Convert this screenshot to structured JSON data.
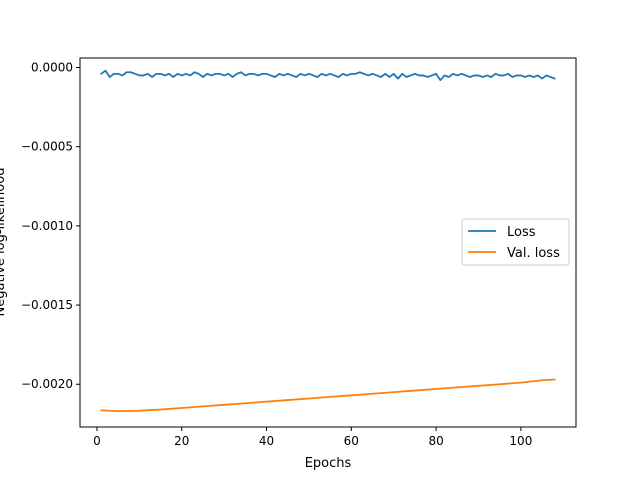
{
  "chart_data": {
    "type": "line",
    "title": "",
    "xlabel": "Epochs",
    "ylabel": "Negative log-likelihood",
    "xlim": [
      -4,
      113
    ],
    "ylim": [
      -0.00227,
      6e-05
    ],
    "xticks": [
      0,
      20,
      40,
      60,
      80,
      100
    ],
    "xtick_labels": [
      "0",
      "20",
      "40",
      "60",
      "80",
      "100"
    ],
    "yticks": [
      0.0,
      -0.0005,
      -0.001,
      -0.0015,
      -0.002
    ],
    "ytick_labels": [
      "0.0000",
      "−0.0005",
      "−0.0010",
      "−0.0015",
      "−0.0020"
    ],
    "grid": false,
    "legend_position": "center-right",
    "series": [
      {
        "name": "Loss",
        "color": "#1f77b4",
        "x": [
          1,
          2,
          3,
          4,
          5,
          6,
          7,
          8,
          9,
          10,
          11,
          12,
          13,
          14,
          15,
          16,
          17,
          18,
          19,
          20,
          21,
          22,
          23,
          24,
          25,
          26,
          27,
          28,
          29,
          30,
          31,
          32,
          33,
          34,
          35,
          36,
          37,
          38,
          39,
          40,
          41,
          42,
          43,
          44,
          45,
          46,
          47,
          48,
          49,
          50,
          51,
          52,
          53,
          54,
          55,
          56,
          57,
          58,
          59,
          60,
          61,
          62,
          63,
          64,
          65,
          66,
          67,
          68,
          69,
          70,
          71,
          72,
          73,
          74,
          75,
          76,
          77,
          78,
          79,
          80,
          81,
          82,
          83,
          84,
          85,
          86,
          87,
          88,
          89,
          90,
          91,
          92,
          93,
          94,
          95,
          96,
          97,
          98,
          99,
          100,
          101,
          102,
          103,
          104,
          105,
          106,
          107,
          108
        ],
        "y": [
          -4e-05,
          -2e-05,
          -6e-05,
          -4e-05,
          -4e-05,
          -5e-05,
          -3e-05,
          -3e-05,
          -4e-05,
          -5e-05,
          -5e-05,
          -4e-05,
          -6e-05,
          -4e-05,
          -4e-05,
          -5e-05,
          -4e-05,
          -6e-05,
          -4e-05,
          -5e-05,
          -4e-05,
          -5e-05,
          -3e-05,
          -4e-05,
          -6e-05,
          -4e-05,
          -5e-05,
          -4e-05,
          -4e-05,
          -5e-05,
          -4e-05,
          -6e-05,
          -4e-05,
          -3e-05,
          -5e-05,
          -4e-05,
          -4e-05,
          -5e-05,
          -4e-05,
          -4e-05,
          -5e-05,
          -6e-05,
          -4e-05,
          -5e-05,
          -4e-05,
          -5e-05,
          -6e-05,
          -4e-05,
          -5e-05,
          -4e-05,
          -5e-05,
          -6e-05,
          -4e-05,
          -5e-05,
          -4e-05,
          -5e-05,
          -6e-05,
          -4e-05,
          -5e-05,
          -4e-05,
          -4e-05,
          -3e-05,
          -4e-05,
          -5e-05,
          -4e-05,
          -5e-05,
          -6e-05,
          -4e-05,
          -6e-05,
          -4e-05,
          -7e-05,
          -4e-05,
          -6e-05,
          -5e-05,
          -4e-05,
          -5e-05,
          -5e-05,
          -6e-05,
          -5e-05,
          -4e-05,
          -8e-05,
          -5e-05,
          -6e-05,
          -4e-05,
          -5e-05,
          -4e-05,
          -5e-05,
          -6e-05,
          -5e-05,
          -5e-05,
          -6e-05,
          -5e-05,
          -6e-05,
          -4e-05,
          -5e-05,
          -5e-05,
          -4e-05,
          -6e-05,
          -5e-05,
          -5e-05,
          -6e-05,
          -5e-05,
          -6e-05,
          -5e-05,
          -7e-05,
          -5e-05,
          -6e-05,
          -7e-05
        ]
      },
      {
        "name": "Val. loss",
        "color": "#ff7f0e",
        "x": [
          1,
          5,
          10,
          15,
          20,
          25,
          30,
          35,
          40,
          45,
          50,
          55,
          60,
          65,
          70,
          75,
          80,
          85,
          90,
          95,
          100,
          105,
          108
        ],
        "y": [
          -0.002165,
          -0.00217,
          -0.002167,
          -0.00216,
          -0.00215,
          -0.00214,
          -0.00213,
          -0.00212,
          -0.00211,
          -0.0021,
          -0.00209,
          -0.00208,
          -0.00207,
          -0.00206,
          -0.00205,
          -0.00204,
          -0.00203,
          -0.00202,
          -0.00201,
          -0.002,
          -0.00199,
          -0.001975,
          -0.00197
        ]
      }
    ]
  }
}
